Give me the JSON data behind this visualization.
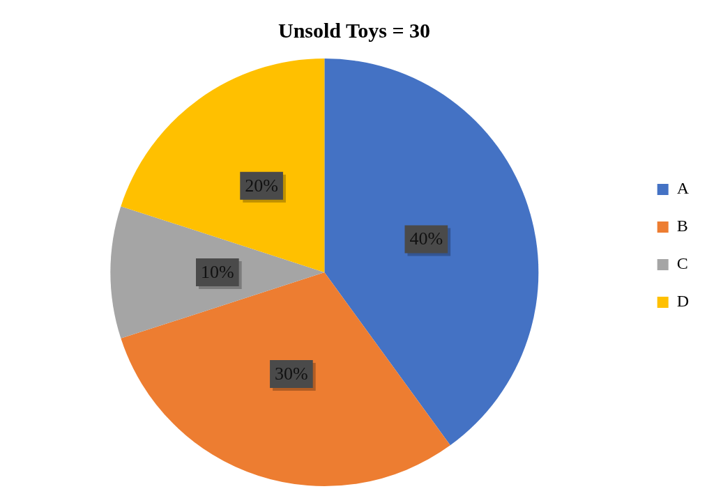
{
  "chart_data": {
    "type": "pie",
    "title": "Unsold Toys = 30",
    "categories": [
      "A",
      "B",
      "C",
      "D"
    ],
    "values": [
      40,
      30,
      10,
      20
    ],
    "colors": [
      "#4472c4",
      "#ed7d31",
      "#a5a5a5",
      "#ffc000"
    ],
    "value_labels": [
      "40%",
      "30%",
      "10%",
      "20%"
    ],
    "legend": "right"
  }
}
